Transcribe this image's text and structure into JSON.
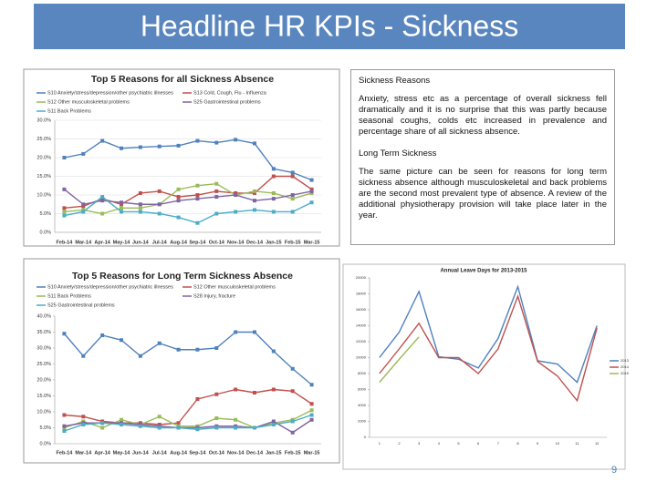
{
  "title": "Headline HR KPIs - Sickness",
  "page_number": "9",
  "text_box": {
    "heading1": "Sickness Reasons",
    "paragraph1": "Anxiety, stress etc as a percentage of overall sickness fell dramatically and it is no surprise that this was partly because seasonal coughs, colds etc increased in prevalence and percentage share of all sickness absence.",
    "heading2": "Long Term Sickness",
    "paragraph2": "The same picture can be seen for reasons for long term sickness absence although musculoskeletal and back problems are the second most prevalent type of absence. A review of the additional physiotherapy provision will take place later in the year."
  },
  "chart_data": [
    {
      "type": "line",
      "title": "Top 5 Reasons for all Sickness Absence",
      "categories": [
        "Feb-14",
        "Mar-14",
        "Apr-14",
        "May-14",
        "Jun-14",
        "Jul-14",
        "Aug-14",
        "Sep-14",
        "Oct-14",
        "Nov-14",
        "Dec-14",
        "Jan-15",
        "Feb-15",
        "Mar-15"
      ],
      "series": [
        {
          "name": "S10 Anxiety/stress/depression/other psychiatric illnesses",
          "color": "#4f81bd",
          "values": [
            20,
            21,
            24.5,
            22.5,
            22.8,
            23,
            23.2,
            24.5,
            24,
            24.8,
            23.8,
            17,
            16,
            14
          ]
        },
        {
          "name": "S13 Cold, Cough, Flu - Influenza",
          "color": "#c0504d",
          "values": [
            6.5,
            7,
            9,
            7.5,
            10.5,
            11,
            9.5,
            10,
            11,
            10.5,
            10.5,
            15,
            15,
            11.5
          ]
        },
        {
          "name": "S12 Other musculoskeletal problems",
          "color": "#9bbb59",
          "values": [
            5.5,
            6,
            5,
            6.5,
            6.5,
            7.5,
            11.5,
            12.5,
            13,
            10,
            11,
            10.5,
            9,
            10.5
          ]
        },
        {
          "name": "S25 Gastrointestinal problems",
          "color": "#8064a2",
          "values": [
            11.5,
            7.5,
            8.5,
            8,
            7.5,
            7.5,
            8.5,
            9,
            9.5,
            10,
            8.5,
            9,
            10,
            11
          ]
        },
        {
          "name": "S11 Back Problems",
          "color": "#4bacc6",
          "values": [
            4.5,
            5.5,
            9.5,
            5.5,
            5.5,
            5,
            4,
            2.5,
            5,
            5.5,
            6,
            5.5,
            5.5,
            8
          ]
        }
      ],
      "ylim": [
        0,
        30
      ],
      "yticks": [
        {
          "value": 0,
          "label": "0.0%"
        },
        {
          "value": 5,
          "label": "5.0%"
        },
        {
          "value": 10,
          "label": "10.0%"
        },
        {
          "value": 15,
          "label": "15.0%"
        },
        {
          "value": 20,
          "label": "20.0%"
        },
        {
          "value": 25,
          "label": "25.0%"
        },
        {
          "value": 30,
          "label": "30.0%"
        }
      ],
      "grid": true
    },
    {
      "type": "line",
      "title": "Top 5 Reasons for Long Term Sickness Absence",
      "categories": [
        "Feb-14",
        "Mar-14",
        "Apr-14",
        "May-14",
        "Jun-14",
        "Jul-14",
        "Aug-14",
        "Sep-14",
        "Oct-14",
        "Nov-14",
        "Dec-14",
        "Jan-15",
        "Feb-15",
        "Mar-15"
      ],
      "series": [
        {
          "name": "S10 Anxiety/stress/depression/other psychiatric illnesses",
          "color": "#4f81bd",
          "values": [
            34.5,
            27.5,
            34,
            32.5,
            27.5,
            31.5,
            29.5,
            29.5,
            30,
            35,
            35,
            29,
            23.5,
            18.5
          ]
        },
        {
          "name": "S12 Other musculoskeletal problems",
          "color": "#c0504d",
          "values": [
            9,
            8.5,
            7,
            6.5,
            6.5,
            6,
            6.5,
            14,
            15.5,
            17,
            16,
            17,
            16.5,
            12.5
          ]
        },
        {
          "name": "S11 Back Problems",
          "color": "#9bbb59",
          "values": [
            5,
            7,
            5,
            7.5,
            6,
            8.5,
            5.5,
            5.5,
            8,
            7.5,
            5,
            6.5,
            7.5,
            10.5
          ]
        },
        {
          "name": "S28 Injury, fracture",
          "color": "#8064a2",
          "values": [
            5.5,
            6.5,
            6.5,
            6.5,
            6,
            5.5,
            5,
            5,
            5.5,
            5.5,
            5,
            7,
            3.5,
            7.5
          ]
        },
        {
          "name": "S25 Gastrointestinal problems",
          "color": "#4bacc6",
          "values": [
            4,
            6,
            6.5,
            6,
            5.5,
            5,
            5,
            4.5,
            5,
            5,
            5,
            6,
            7,
            9
          ]
        }
      ],
      "ylim": [
        0,
        40
      ],
      "yticks": [
        {
          "value": 0,
          "label": "0.0%"
        },
        {
          "value": 5,
          "label": "5.0%"
        },
        {
          "value": 10,
          "label": "10.0%"
        },
        {
          "value": 15,
          "label": "15.0%"
        },
        {
          "value": 20,
          "label": "20.0%"
        },
        {
          "value": 25,
          "label": "25.0%"
        },
        {
          "value": 30,
          "label": "30.0%"
        },
        {
          "value": 35,
          "label": "35.0%"
        },
        {
          "value": 40,
          "label": "40.0%"
        }
      ],
      "grid": false
    },
    {
      "type": "line",
      "title": "Annual Leave Days for 2013-2015",
      "categories": [
        "1",
        "2",
        "3",
        "4",
        "5",
        "6",
        "7",
        "8",
        "9",
        "10",
        "11",
        "12"
      ],
      "series": [
        {
          "name": "2013",
          "color": "#4f81bd",
          "values": [
            10000,
            13200,
            18300,
            10100,
            9800,
            8700,
            12400,
            18900,
            9600,
            9200,
            6900,
            14000
          ]
        },
        {
          "name": "2014",
          "color": "#c0504d",
          "values": [
            8000,
            11100,
            14300,
            10000,
            10000,
            8000,
            11100,
            17700,
            9500,
            7700,
            4600,
            13700
          ]
        },
        {
          "name": "2015",
          "color": "#9bbb59",
          "values": [
            6900,
            9800,
            12600,
            null,
            null,
            null,
            null,
            null,
            null,
            null,
            null,
            null
          ]
        }
      ],
      "ylim": [
        0,
        20000
      ],
      "yticks": [
        0,
        2000,
        4000,
        6000,
        8000,
        10000,
        12000,
        14000,
        16000,
        18000,
        20000
      ],
      "grid": false
    }
  ]
}
